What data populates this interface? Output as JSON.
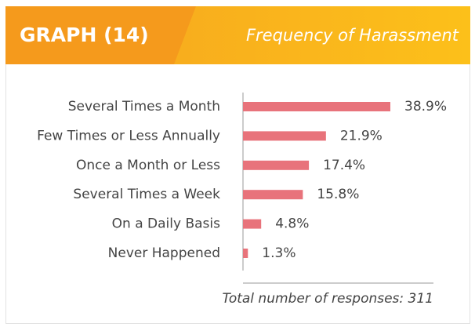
{
  "chart_data": {
    "type": "bar",
    "orientation": "horizontal",
    "header_label": "GRAPH (14)",
    "title": "Frequency of Harassment",
    "categories": [
      "Several Times a Month",
      "Few Times or Less Annually",
      "Once a Month or Less",
      "Several Times a Week",
      "On a Daily Basis",
      "Never Happened"
    ],
    "values": [
      38.9,
      21.9,
      17.4,
      15.8,
      4.8,
      1.3
    ],
    "value_labels": [
      "38.9%",
      "21.9%",
      "17.4%",
      "15.8%",
      "4.8%",
      "1.3%"
    ],
    "color": "#e8737b",
    "note": "Total number of responses: 311"
  }
}
